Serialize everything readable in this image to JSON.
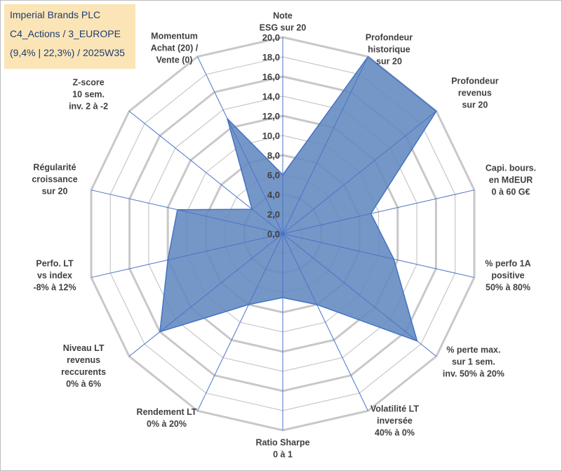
{
  "title_box": {
    "lines": [
      "Imperial Brands PLC",
      "C4_Actions / 3_EUROPE",
      "(9,4% | 22,3%) / 2025W35"
    ]
  },
  "chart_data": {
    "type": "radar",
    "rmin": 0,
    "rmax": 20,
    "tick_step": 2,
    "tick_labels": [
      "0,0",
      "2,0",
      "4,0",
      "6,0",
      "8,0",
      "10,0",
      "12,0",
      "14,0",
      "16,0",
      "18,0",
      "20,0"
    ],
    "axes": [
      [
        "Note",
        "ESG sur 20"
      ],
      [
        "Profondeur",
        "historique",
        "sur 20"
      ],
      [
        "Profondeur",
        "revenus",
        "sur 20"
      ],
      [
        "Capi. bours.",
        "en MdEUR",
        "0 à 60 G€"
      ],
      [
        "% perfo 1A",
        "positive",
        "50% à 80%"
      ],
      [
        "% perte max.",
        "sur 1 sem.",
        "inv. 50% à 20%"
      ],
      [
        "Volatilité LT",
        "inversée",
        "40% à 0%"
      ],
      [
        "Ratio Sharpe",
        "0 à 1"
      ],
      [
        "Rendement LT",
        "0% à 20%"
      ],
      [
        "Niveau LT",
        "revenus",
        "reccurents",
        "0% à 6%"
      ],
      [
        "Perfo. LT",
        "vs index",
        "-8% à 12%"
      ],
      [
        "Régularité",
        "croissance",
        "sur 20"
      ],
      [
        "Z-score",
        "10 sem.",
        "inv. 2 à -2"
      ],
      [
        "Momentum",
        "Achat (20) /",
        "Vente (0)"
      ]
    ],
    "values": [
      6.0,
      20.0,
      20.0,
      9.2,
      11.6,
      17.5,
      8.0,
      6.5,
      8.0,
      16.0,
      12.0,
      11.0,
      4.0,
      13.0
    ],
    "colors": {
      "fill": "#6289bf",
      "stroke": "#4472c4",
      "grid": "#c8c8c8",
      "spoke": "#4a72c8"
    },
    "grid": true
  }
}
